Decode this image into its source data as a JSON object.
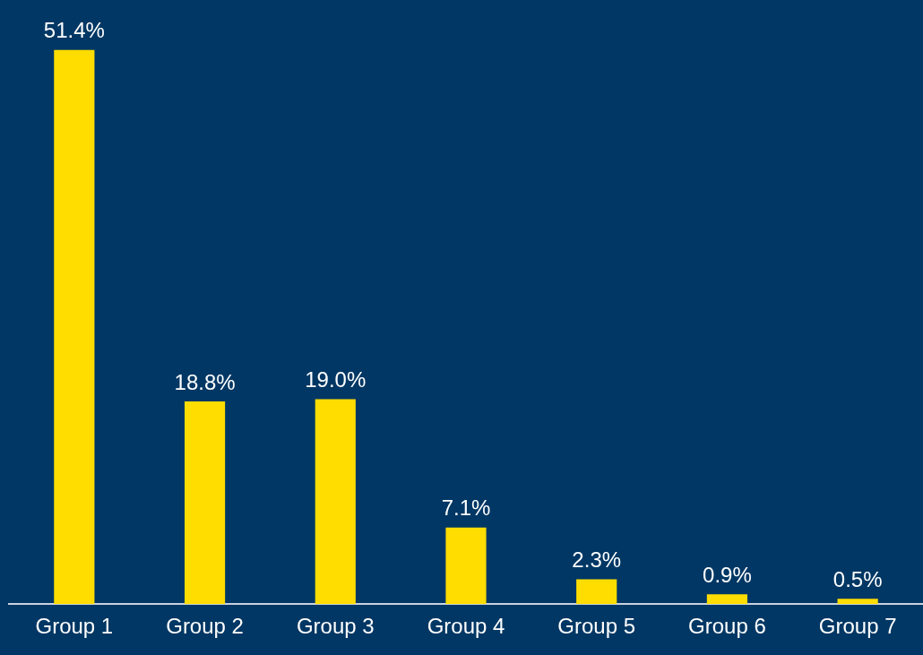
{
  "chart_data": {
    "type": "bar",
    "categories": [
      "Group 1",
      "Group 2",
      "Group 3",
      "Group 4",
      "Group 5",
      "Group 6",
      "Group 7"
    ],
    "values": [
      51.4,
      18.8,
      19.0,
      7.1,
      2.3,
      0.9,
      0.5
    ],
    "color": "#ffdd00",
    "value_labels": [
      "51.4%",
      "18.8%",
      "19.0%",
      "7.1%",
      "2.3%",
      "0.9%",
      "0.5%"
    ]
  }
}
